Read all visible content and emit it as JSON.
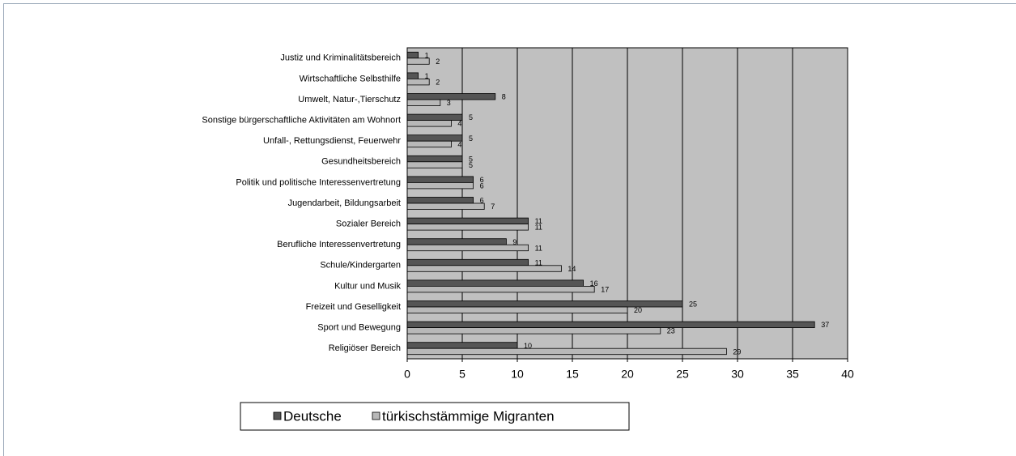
{
  "chart_data": {
    "type": "bar",
    "orientation": "horizontal",
    "categories": [
      "Justiz und Kriminalitätsbereich",
      "Wirtschaftliche Selbsthilfe",
      "Umwelt, Natur-,Tierschutz",
      "Sonstige bürgerschaftliche Aktivitäten am Wohnort",
      "Unfall-, Rettungsdienst, Feuerwehr",
      "Gesundheitsbereich",
      "Politik und politische Interessenvertretung",
      "Jugendarbeit, Bildungsarbeit",
      "Sozialer Bereich",
      "Berufliche Interessenvertretung",
      "Schule/Kindergarten",
      "Kultur und Musik",
      "Freizeit und Geselligkeit",
      "Sport und Bewegung",
      "Religiöser Bereich"
    ],
    "series": [
      {
        "name": "Deutsche",
        "color": "#555555",
        "values": [
          1,
          1,
          8,
          5,
          5,
          5,
          6,
          6,
          11,
          9,
          11,
          16,
          25,
          37,
          10
        ]
      },
      {
        "name": "türkischstämmige Migranten",
        "color": "#b8b8b8",
        "values": [
          2,
          2,
          3,
          4,
          4,
          5,
          6,
          7,
          11,
          11,
          14,
          17,
          20,
          23,
          29
        ]
      }
    ],
    "xlim": [
      0,
      40
    ],
    "xticks": [
      0,
      5,
      10,
      15,
      20,
      25,
      30,
      35,
      40
    ],
    "grid": true,
    "legend": "bottom",
    "plot_background": "#c0c0c0"
  }
}
